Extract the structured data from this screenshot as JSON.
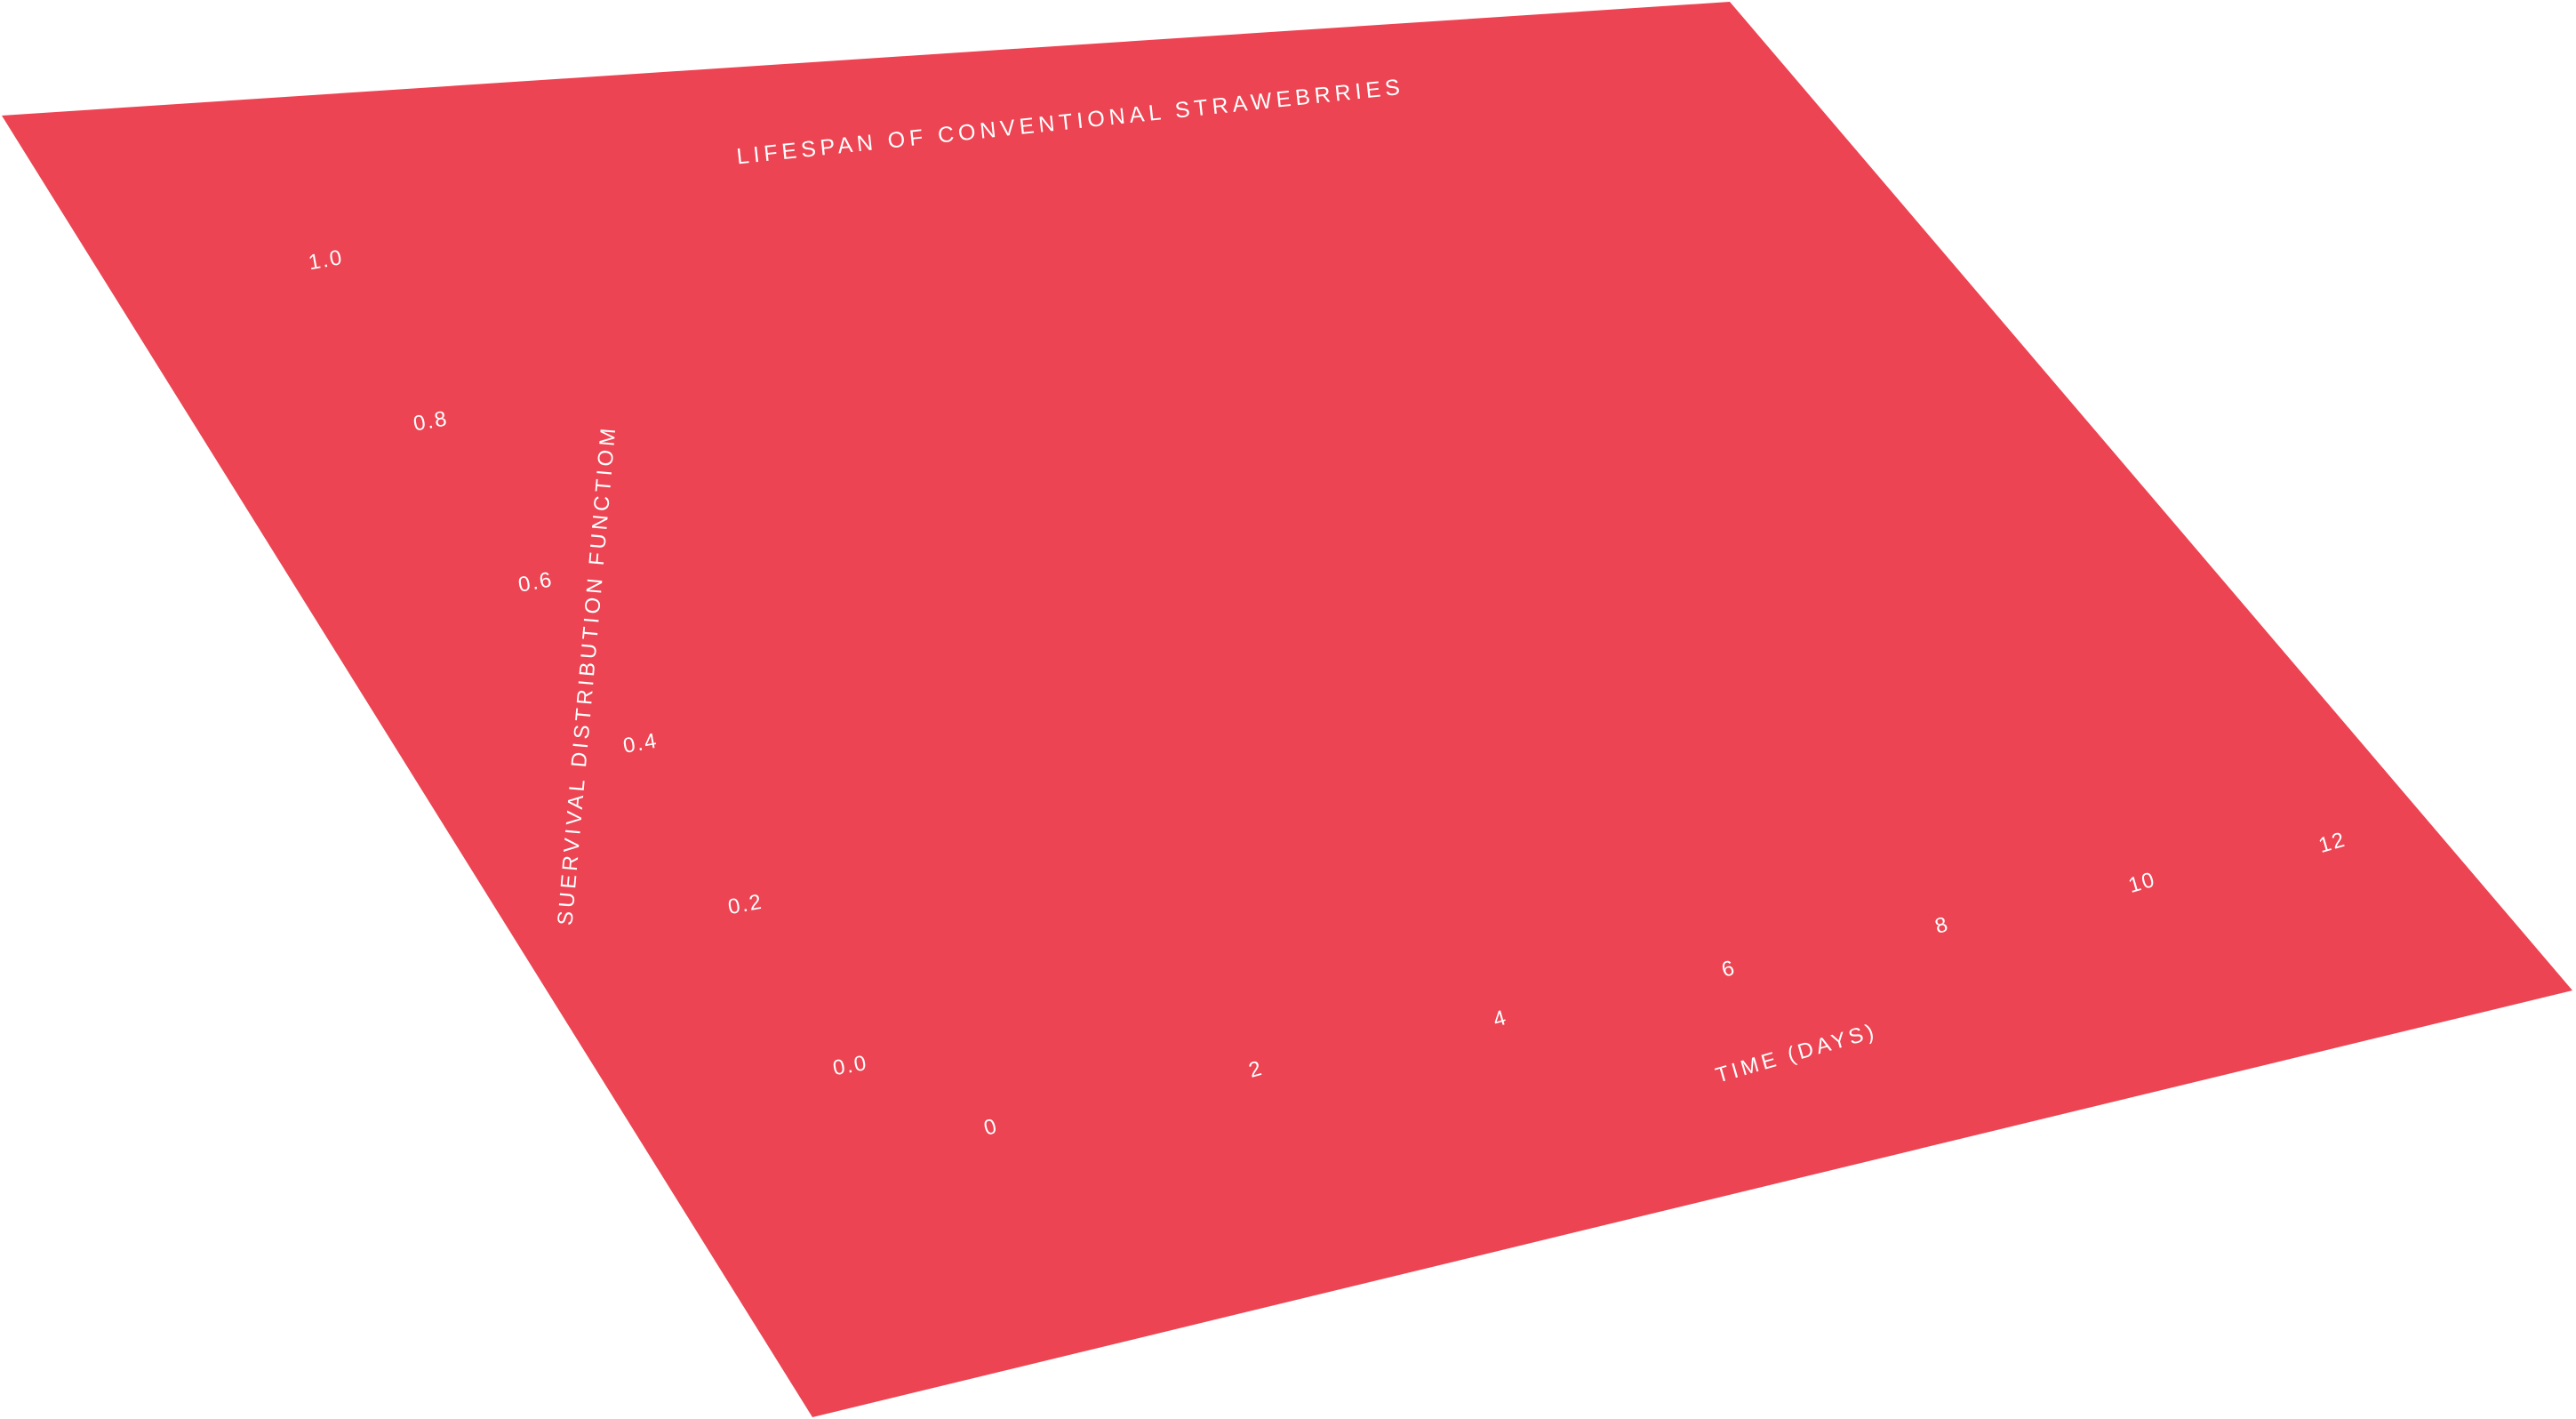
{
  "colors": {
    "panel": "#ec4452",
    "text": "#ffffff",
    "background": "#ffffff"
  },
  "chart_data": {
    "type": "line",
    "title": "LIFESPAN OF CONVENTIONAL STRAWEBRRIES",
    "xlabel": "TIME (DAYS)",
    "ylabel": "SUERVIVAL DISTRIBUTION FUNCTIOM",
    "x_ticks": [
      "0",
      "2",
      "4",
      "6",
      "8",
      "10",
      "12"
    ],
    "y_ticks": [
      "0.0",
      "0.2",
      "0.4",
      "0.6",
      "0.8",
      "1.0"
    ],
    "xlim": [
      0,
      12
    ],
    "ylim": [
      0.0,
      1.0
    ],
    "grid": false,
    "series": [],
    "perspective": "tilted-plane"
  }
}
